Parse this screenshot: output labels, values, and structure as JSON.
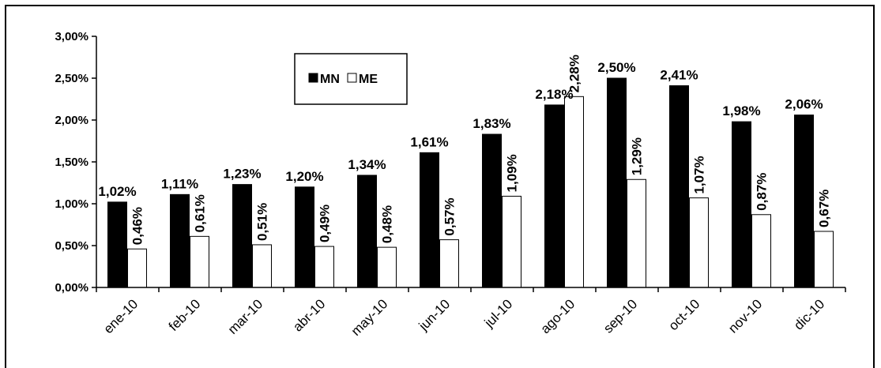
{
  "chart_data": {
    "type": "bar",
    "categories": [
      "ene-10",
      "feb-10",
      "mar-10",
      "abr-10",
      "may-10",
      "jun-10",
      "jul-10",
      "ago-10",
      "sep-10",
      "oct-10",
      "nov-10",
      "dic-10"
    ],
    "series": [
      {
        "name": "MN",
        "color": "#000000",
        "values": [
          1.02,
          1.11,
          1.23,
          1.2,
          1.34,
          1.61,
          1.83,
          2.18,
          2.5,
          2.41,
          1.98,
          2.06
        ],
        "labels": [
          "1,02%",
          "1,11%",
          "1,23%",
          "1,20%",
          "1,34%",
          "1,61%",
          "1,83%",
          "2,18%",
          "2,50%",
          "2,41%",
          "1,98%",
          "2,06%"
        ]
      },
      {
        "name": "ME",
        "color": "#ffffff",
        "values": [
          0.46,
          0.61,
          0.51,
          0.49,
          0.48,
          0.57,
          1.09,
          2.28,
          1.29,
          1.07,
          0.87,
          0.67
        ],
        "labels": [
          "0,46%",
          "0,61%",
          "0,51%",
          "0,49%",
          "0,48%",
          "0,57%",
          "1,09%",
          "2,28%",
          "1,29%",
          "1,07%",
          "0,87%",
          "0,67%"
        ]
      }
    ],
    "ylim": [
      0,
      3
    ],
    "yticks": [
      0,
      0.5,
      1.0,
      1.5,
      2.0,
      2.5,
      3.0
    ],
    "ytick_labels": [
      "0,00%",
      "0,50%",
      "1,00%",
      "1,50%",
      "2,00%",
      "2,50%",
      "3,00%"
    ],
    "grid": false,
    "legend_position": "top-center",
    "title": "",
    "xlabel": "",
    "ylabel": ""
  }
}
